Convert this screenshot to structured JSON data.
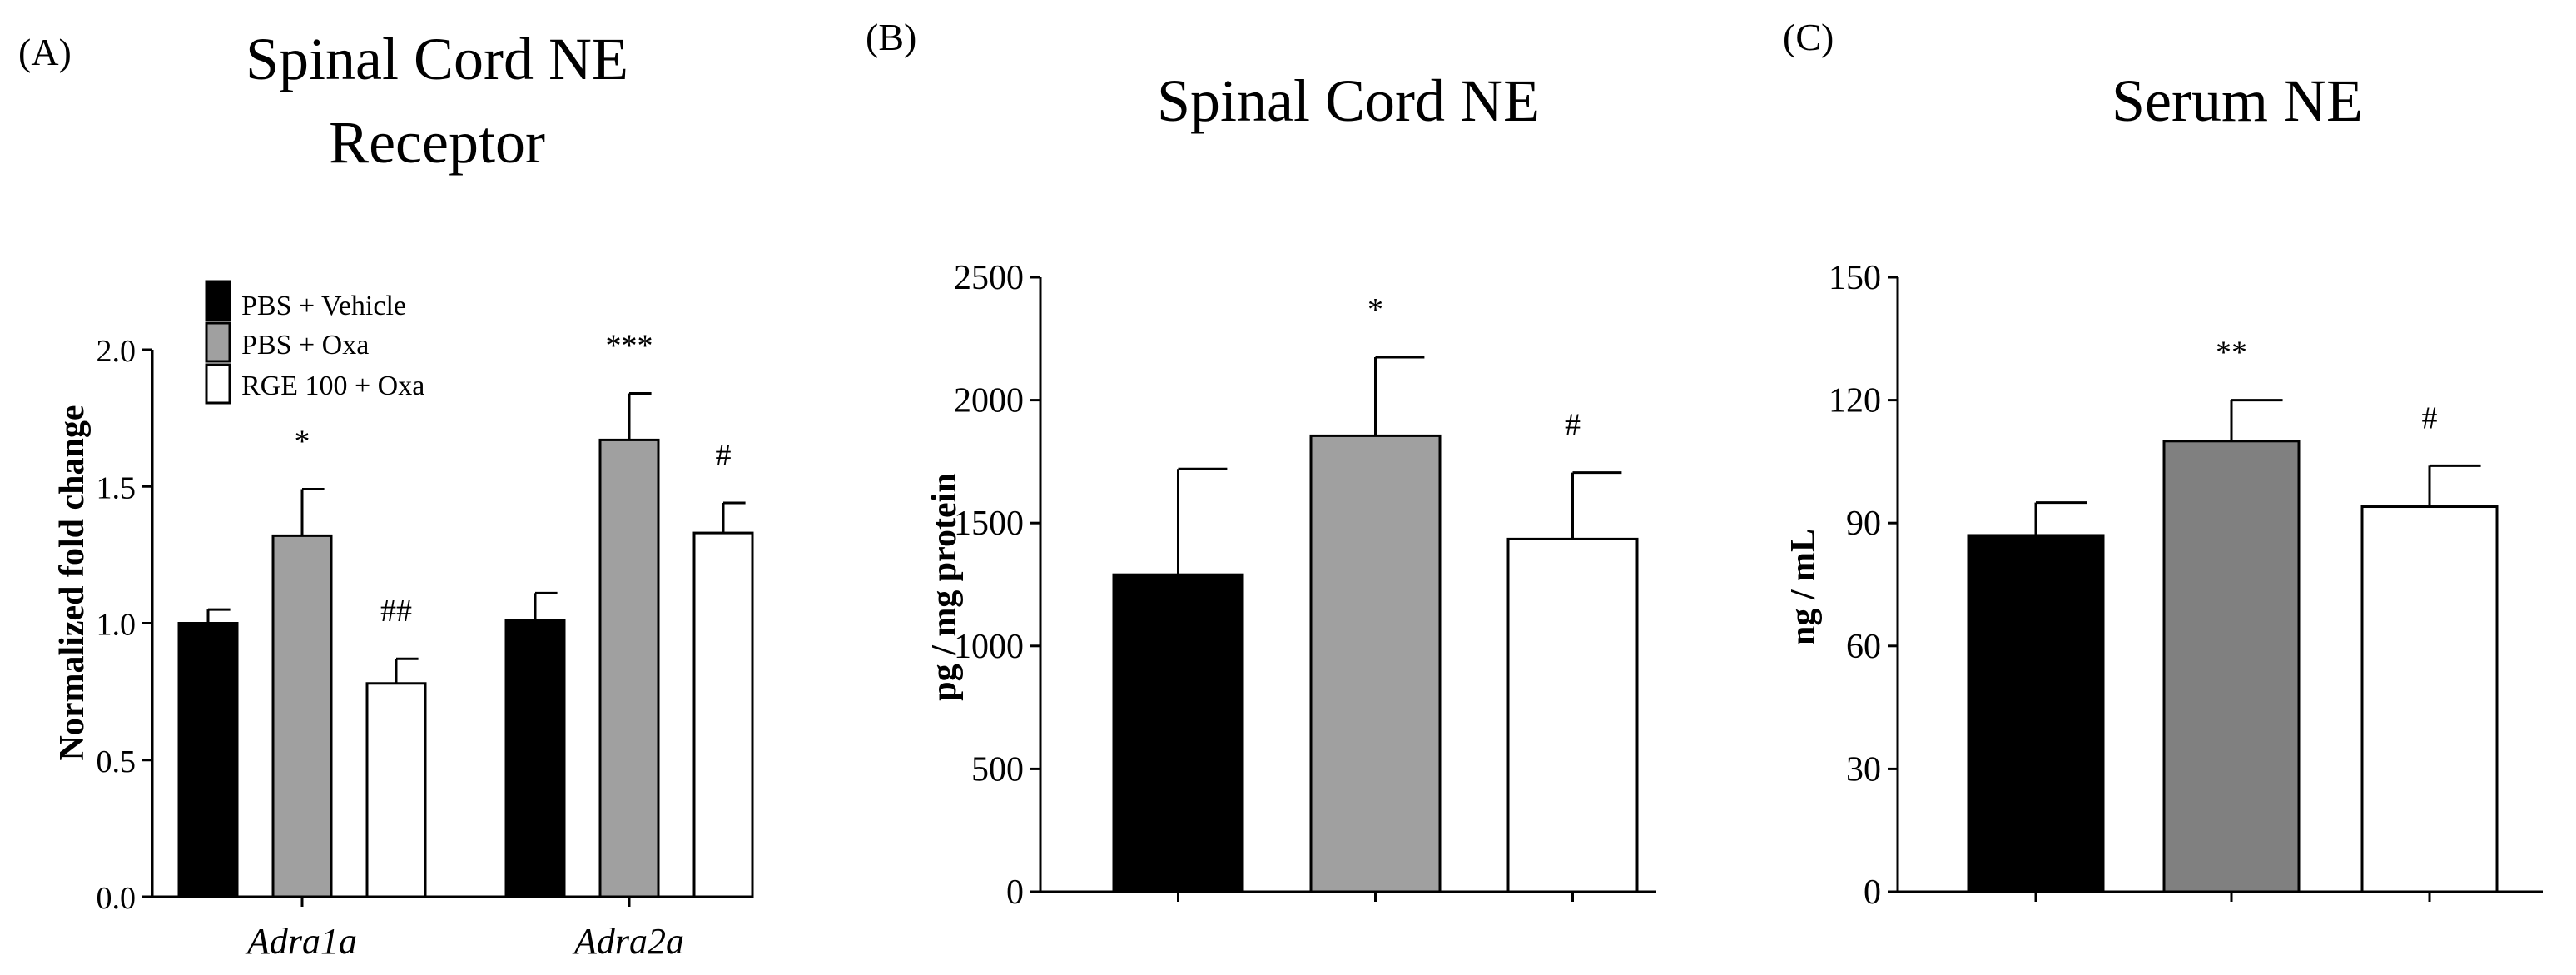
{
  "panel_labels": [
    "(A)",
    "(B)",
    "(C)"
  ],
  "chart_data": [
    {
      "type": "bar",
      "panel": "(A)",
      "title": "Spinal Cord NE Receptor",
      "title_lines": [
        "Spinal Cord NE",
        "Receptor"
      ],
      "xlabel": "",
      "ylabel": "Normalized fold change",
      "ylim": [
        0,
        2.0
      ],
      "yticks": [
        0.0,
        0.5,
        1.0,
        1.5,
        2.0
      ],
      "ytick_labels": [
        "0.0",
        "0.5",
        "1.0",
        "1.5",
        "2.0"
      ],
      "categories": [
        "Adra1a",
        "Adra2a"
      ],
      "series": [
        {
          "name": "PBS + Vehicle",
          "color": "#000000",
          "values": [
            1.0,
            1.01
          ],
          "errors": [
            0.05,
            0.1
          ],
          "labels": [
            "",
            ""
          ]
        },
        {
          "name": "PBS + Oxa",
          "color": "#a0a0a0",
          "values": [
            1.32,
            1.67
          ],
          "errors": [
            0.17,
            0.17
          ],
          "labels": [
            "*",
            "***"
          ]
        },
        {
          "name": "RGE 100 + Oxa",
          "color": "#ffffff",
          "values": [
            0.78,
            1.33
          ],
          "errors": [
            0.09,
            0.11
          ],
          "labels": [
            "##",
            "#"
          ]
        }
      ],
      "legend_position": "top-left"
    },
    {
      "type": "bar",
      "panel": "(B)",
      "title": "Spinal Cord NE",
      "title_lines": [
        "Spinal Cord NE"
      ],
      "xlabel": "",
      "ylabel": "pg / mg protein",
      "ylim": [
        0,
        2500
      ],
      "yticks": [
        0,
        500,
        1000,
        1500,
        2000,
        2500
      ],
      "ytick_labels": [
        "0",
        "500",
        "1000",
        "1500",
        "2000",
        "2500"
      ],
      "categories": [
        "PBS + Vehicle",
        "PBS + Oxa",
        "RGE 100 + Oxa"
      ],
      "category_labels_visible": false,
      "values": [
        1290,
        1855,
        1435
      ],
      "errors": [
        430,
        320,
        270
      ],
      "colors": [
        "#000000",
        "#a0a0a0",
        "#ffffff"
      ],
      "labels": [
        "",
        "*",
        "#"
      ]
    },
    {
      "type": "bar",
      "panel": "(C)",
      "title": "Serum NE",
      "title_lines": [
        "Serum NE"
      ],
      "xlabel": "",
      "ylabel": "ng / mL",
      "ylim": [
        0,
        150
      ],
      "yticks": [
        0,
        30,
        60,
        90,
        120,
        150
      ],
      "ytick_labels": [
        "0",
        "30",
        "60",
        "90",
        "120",
        "150"
      ],
      "categories": [
        "PBS + Vehicle",
        "PBS + Oxa",
        "RGE 100 + Oxa"
      ],
      "category_labels_visible": false,
      "values": [
        87,
        110,
        94
      ],
      "errors": [
        8,
        10,
        10
      ],
      "colors": [
        "#000000",
        "#808080",
        "#ffffff"
      ],
      "labels": [
        "",
        "**",
        "#"
      ]
    }
  ]
}
